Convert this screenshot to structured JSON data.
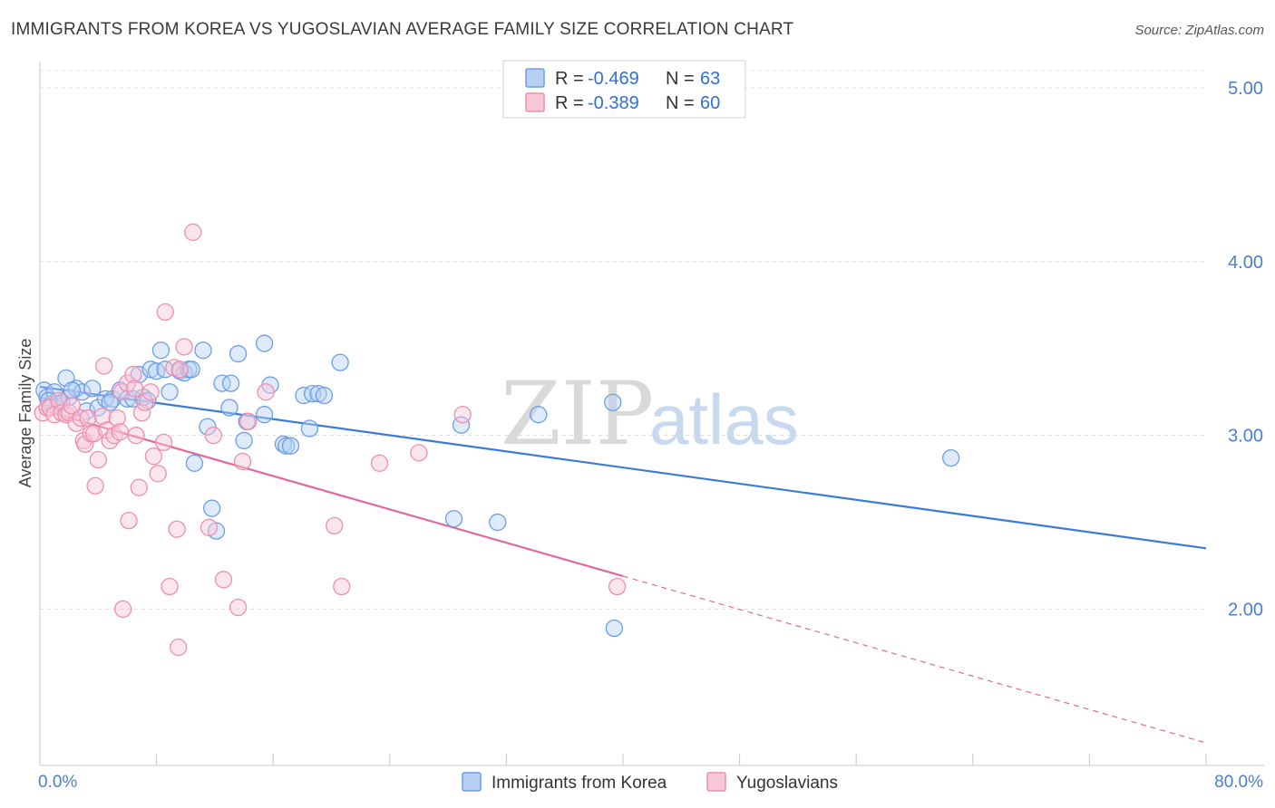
{
  "title": "IMMIGRANTS FROM KOREA VS YUGOSLAVIAN AVERAGE FAMILY SIZE CORRELATION CHART",
  "source": "Source: ZipAtlas.com",
  "watermark": {
    "zip": "ZIP",
    "atlas": "atlas"
  },
  "legend": {
    "r_label": "R =",
    "n_label": "N =",
    "items": [
      {
        "r": "-0.469",
        "n": "63",
        "color": "#6a9ee8",
        "fill": "#b8d0f4"
      },
      {
        "r": "-0.389",
        "n": "60",
        "color": "#ec8fae",
        "fill": "#f9c8d8"
      }
    ]
  },
  "bottom_legend": [
    {
      "label": "Immigrants from Korea",
      "color": "#6a9ee8",
      "fill": "#b8d0f4"
    },
    {
      "label": "Yugoslavians",
      "color": "#ec8fae",
      "fill": "#f9c8d8"
    }
  ],
  "chart_data": {
    "type": "scatter",
    "title": "IMMIGRANTS FROM KOREA VS YUGOSLAVIAN AVERAGE FAMILY SIZE CORRELATION CHART",
    "xlabel": "",
    "ylabel": "Average Family Size",
    "xlim": [
      0,
      80
    ],
    "ylim": [
      1.1,
      5.1
    ],
    "x_tick_labels": [
      "0.0%",
      "80.0%"
    ],
    "y_ticks": [
      2.0,
      3.0,
      4.0,
      5.0
    ],
    "y_tick_labels": [
      "2.00",
      "3.00",
      "4.00",
      "5.00"
    ],
    "grid": "horizontal dashed",
    "legend_position": "top-center",
    "series": [
      {
        "name": "Immigrants from Korea",
        "color": "#3a7bd5",
        "points": [
          [
            0.3,
            3.26
          ],
          [
            0.5,
            3.22
          ],
          [
            0.8,
            3.18
          ],
          [
            1.0,
            3.25
          ],
          [
            1.3,
            3.18
          ],
          [
            1.5,
            3.19
          ],
          [
            1.8,
            3.33
          ],
          [
            2.0,
            3.22
          ],
          [
            2.5,
            3.27
          ],
          [
            2.9,
            3.25
          ],
          [
            3.2,
            3.14
          ],
          [
            3.6,
            3.27
          ],
          [
            4.0,
            3.16
          ],
          [
            4.5,
            3.21
          ],
          [
            5.0,
            3.21
          ],
          [
            5.5,
            3.26
          ],
          [
            6.0,
            3.21
          ],
          [
            6.4,
            3.21
          ],
          [
            6.8,
            3.35
          ],
          [
            7.1,
            3.22
          ],
          [
            7.6,
            3.38
          ],
          [
            8.0,
            3.37
          ],
          [
            8.3,
            3.49
          ],
          [
            8.6,
            3.38
          ],
          [
            8.9,
            3.25
          ],
          [
            9.6,
            3.37
          ],
          [
            9.9,
            3.36
          ],
          [
            10.2,
            3.38
          ],
          [
            10.4,
            3.38
          ],
          [
            10.6,
            2.84
          ],
          [
            11.2,
            3.49
          ],
          [
            11.5,
            3.05
          ],
          [
            11.8,
            2.58
          ],
          [
            12.1,
            2.45
          ],
          [
            12.5,
            3.3
          ],
          [
            13.1,
            3.3
          ],
          [
            13.0,
            3.16
          ],
          [
            13.6,
            3.47
          ],
          [
            14.0,
            2.97
          ],
          [
            14.2,
            3.08
          ],
          [
            15.4,
            3.53
          ],
          [
            15.4,
            3.12
          ],
          [
            15.8,
            3.29
          ],
          [
            16.7,
            2.95
          ],
          [
            16.9,
            2.94
          ],
          [
            17.2,
            2.94
          ],
          [
            18.1,
            3.23
          ],
          [
            18.5,
            3.04
          ],
          [
            18.7,
            3.24
          ],
          [
            19.1,
            3.24
          ],
          [
            19.5,
            3.23
          ],
          [
            20.6,
            3.42
          ],
          [
            28.4,
            2.52
          ],
          [
            28.9,
            3.06
          ],
          [
            31.4,
            2.5
          ],
          [
            34.2,
            3.12
          ],
          [
            39.3,
            3.19
          ],
          [
            39.4,
            1.89
          ],
          [
            62.5,
            2.87
          ],
          [
            0.6,
            3.2
          ],
          [
            2.2,
            3.26
          ],
          [
            4.8,
            3.19
          ],
          [
            7.4,
            3.2
          ]
        ],
        "trend": {
          "x": [
            0,
            80
          ],
          "y": [
            3.28,
            2.35
          ]
        }
      },
      {
        "name": "Yugoslavians",
        "color": "#e0699a",
        "points": [
          [
            0.2,
            3.13
          ],
          [
            0.5,
            3.16
          ],
          [
            0.7,
            3.16
          ],
          [
            1.0,
            3.12
          ],
          [
            1.3,
            3.2
          ],
          [
            1.5,
            3.13
          ],
          [
            1.8,
            3.12
          ],
          [
            2.0,
            3.13
          ],
          [
            2.2,
            3.17
          ],
          [
            2.5,
            3.07
          ],
          [
            2.8,
            3.1
          ],
          [
            3.0,
            2.97
          ],
          [
            3.1,
            2.95
          ],
          [
            3.3,
            3.1
          ],
          [
            3.5,
            3.01
          ],
          [
            3.7,
            3.01
          ],
          [
            3.8,
            2.71
          ],
          [
            4.0,
            2.86
          ],
          [
            4.3,
            3.11
          ],
          [
            4.4,
            3.4
          ],
          [
            4.6,
            3.03
          ],
          [
            4.8,
            2.97
          ],
          [
            5.1,
            3.0
          ],
          [
            5.3,
            3.1
          ],
          [
            5.5,
            3.02
          ],
          [
            5.6,
            3.25
          ],
          [
            5.7,
            2.0
          ],
          [
            6.0,
            3.3
          ],
          [
            6.1,
            2.51
          ],
          [
            6.4,
            3.35
          ],
          [
            6.5,
            3.27
          ],
          [
            6.6,
            3.0
          ],
          [
            6.8,
            2.7
          ],
          [
            7.0,
            3.13
          ],
          [
            7.2,
            3.19
          ],
          [
            7.6,
            3.25
          ],
          [
            7.8,
            2.88
          ],
          [
            8.1,
            2.78
          ],
          [
            8.5,
            2.96
          ],
          [
            8.6,
            3.71
          ],
          [
            8.9,
            2.13
          ],
          [
            9.2,
            3.39
          ],
          [
            9.5,
            1.78
          ],
          [
            9.9,
            3.51
          ],
          [
            10.5,
            4.17
          ],
          [
            11.6,
            2.47
          ],
          [
            11.9,
            3.0
          ],
          [
            12.6,
            2.17
          ],
          [
            13.6,
            2.01
          ],
          [
            13.9,
            2.85
          ],
          [
            14.3,
            3.08
          ],
          [
            15.5,
            3.25
          ],
          [
            20.2,
            2.48
          ],
          [
            20.7,
            2.13
          ],
          [
            23.3,
            2.84
          ],
          [
            26.0,
            2.9
          ],
          [
            29.0,
            3.12
          ],
          [
            39.6,
            2.13
          ],
          [
            9.4,
            2.46
          ],
          [
            9.6,
            3.38
          ]
        ],
        "trend": {
          "x": [
            0,
            40
          ],
          "y": [
            3.15,
            2.19
          ]
        },
        "trend_extension": {
          "x": [
            40,
            80
          ],
          "y": [
            2.19,
            1.23
          ]
        }
      }
    ]
  }
}
